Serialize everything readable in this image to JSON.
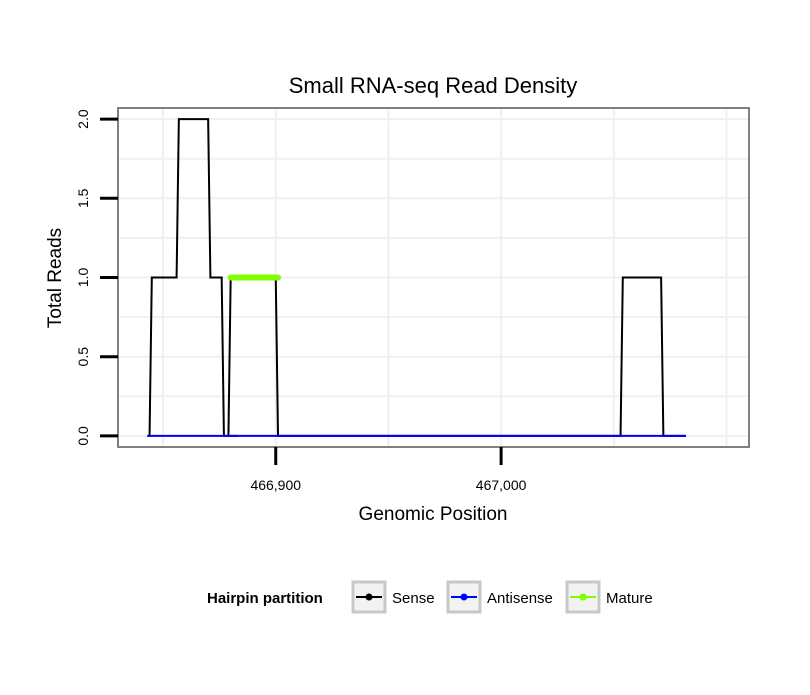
{
  "chart_data": {
    "type": "line",
    "title": "Small RNA-seq Read Density",
    "xlabel": "Genomic Position",
    "ylabel": "Total Reads",
    "xlim": [
      466830,
      467110
    ],
    "ylim": [
      -0.07,
      2.07
    ],
    "x_ticks": [
      466900,
      467000
    ],
    "x_tick_labels": [
      "466,900",
      "467,000"
    ],
    "y_ticks": [
      0,
      0.5,
      1,
      1.5,
      2
    ],
    "y_tick_labels": [
      "0.0",
      "0.5",
      "1.0",
      "1.5",
      "2.0"
    ],
    "grid": true,
    "legend_position": "bottom",
    "series": [
      {
        "name": "Sense",
        "color": "#000000",
        "x": [
          466843,
          466844,
          466845,
          466856,
          466857,
          466870,
          466871,
          466876,
          466877,
          466882,
          466883,
          466879,
          466880,
          466900,
          466901,
          467053,
          467054,
          467071,
          467072,
          467082
        ],
        "y": [
          0,
          0,
          1,
          1,
          2,
          2,
          1,
          1,
          0,
          0,
          0,
          0,
          1,
          1,
          0,
          0,
          1,
          1,
          0,
          0
        ]
      },
      {
        "name": "Antisense",
        "color": "#0000ff",
        "x": [
          466843,
          467082
        ],
        "y": [
          0,
          0
        ]
      },
      {
        "name": "Mature",
        "color": "#7fff00",
        "x": [
          466880,
          466901
        ],
        "y": [
          1,
          1
        ]
      }
    ]
  },
  "legend": {
    "title": "Hairpin partition",
    "items": [
      "Sense",
      "Antisense",
      "Mature"
    ]
  }
}
